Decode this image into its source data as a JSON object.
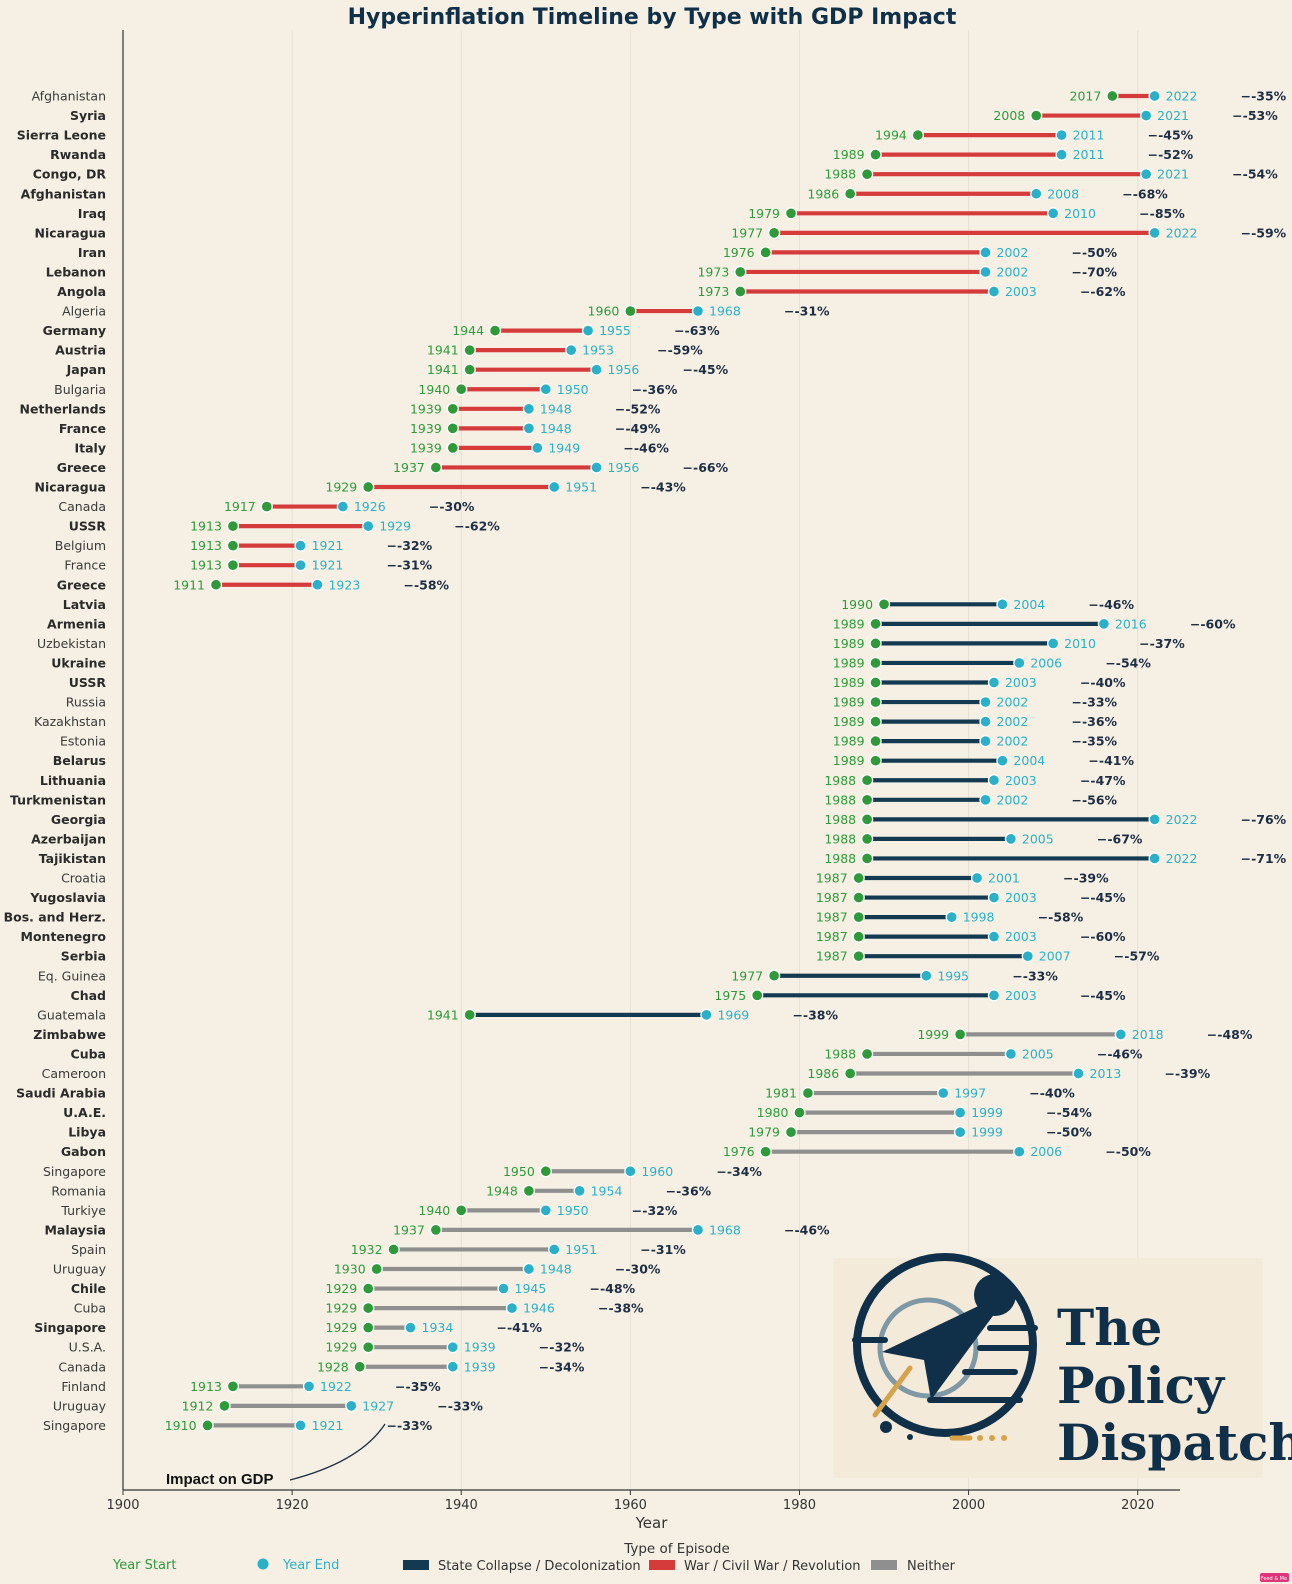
{
  "chart_data": {
    "type": "dumbbell",
    "title": "Hyperinflation Timeline by Type with GDP Impact",
    "xlabel": "Year",
    "xlim": [
      1900,
      2025
    ],
    "xticks": [
      1900,
      1920,
      1940,
      1960,
      1980,
      2000,
      2020
    ],
    "grid": "vertical",
    "rows": [
      {
        "country": "Afghanistan",
        "bold": false,
        "start": 2017,
        "end": 2022,
        "impact": "−-35%",
        "type": "war"
      },
      {
        "country": "Syria",
        "bold": true,
        "start": 2008,
        "end": 2021,
        "impact": "−-53%",
        "type": "war"
      },
      {
        "country": "Sierra Leone",
        "bold": true,
        "start": 1994,
        "end": 2011,
        "impact": "−-45%",
        "type": "war"
      },
      {
        "country": "Rwanda",
        "bold": true,
        "start": 1989,
        "end": 2011,
        "impact": "−-52%",
        "type": "war"
      },
      {
        "country": "Congo, DR",
        "bold": true,
        "start": 1988,
        "end": 2021,
        "impact": "−-54%",
        "type": "war"
      },
      {
        "country": "Afghanistan",
        "bold": true,
        "start": 1986,
        "end": 2008,
        "impact": "−-68%",
        "type": "war"
      },
      {
        "country": "Iraq",
        "bold": true,
        "start": 1979,
        "end": 2010,
        "impact": "−-85%",
        "type": "war"
      },
      {
        "country": "Nicaragua",
        "bold": true,
        "start": 1977,
        "end": 2022,
        "impact": "−-59%",
        "type": "war"
      },
      {
        "country": "Iran",
        "bold": true,
        "start": 1976,
        "end": 2002,
        "impact": "−-50%",
        "type": "war"
      },
      {
        "country": "Lebanon",
        "bold": true,
        "start": 1973,
        "end": 2002,
        "impact": "−-70%",
        "type": "war"
      },
      {
        "country": "Angola",
        "bold": true,
        "start": 1973,
        "end": 2003,
        "impact": "−-62%",
        "type": "war"
      },
      {
        "country": "Algeria",
        "bold": false,
        "start": 1960,
        "end": 1968,
        "impact": "−-31%",
        "type": "war"
      },
      {
        "country": "Germany",
        "bold": true,
        "start": 1944,
        "end": 1955,
        "impact": "−-63%",
        "type": "war"
      },
      {
        "country": "Austria",
        "bold": true,
        "start": 1941,
        "end": 1953,
        "impact": "−-59%",
        "type": "war"
      },
      {
        "country": "Japan",
        "bold": true,
        "start": 1941,
        "end": 1956,
        "impact": "−-45%",
        "type": "war"
      },
      {
        "country": "Bulgaria",
        "bold": false,
        "start": 1940,
        "end": 1950,
        "impact": "−-36%",
        "type": "war"
      },
      {
        "country": "Netherlands",
        "bold": true,
        "start": 1939,
        "end": 1948,
        "impact": "−-52%",
        "type": "war"
      },
      {
        "country": "France",
        "bold": true,
        "start": 1939,
        "end": 1948,
        "impact": "−-49%",
        "type": "war"
      },
      {
        "country": "Italy",
        "bold": true,
        "start": 1939,
        "end": 1949,
        "impact": "−-46%",
        "type": "war"
      },
      {
        "country": "Greece",
        "bold": true,
        "start": 1937,
        "end": 1956,
        "impact": "−-66%",
        "type": "war"
      },
      {
        "country": "Nicaragua",
        "bold": true,
        "start": 1929,
        "end": 1951,
        "impact": "−-43%",
        "type": "war"
      },
      {
        "country": "Canada",
        "bold": false,
        "start": 1917,
        "end": 1926,
        "impact": "−-30%",
        "type": "war"
      },
      {
        "country": "USSR",
        "bold": true,
        "start": 1913,
        "end": 1929,
        "impact": "−-62%",
        "type": "war"
      },
      {
        "country": "Belgium",
        "bold": false,
        "start": 1913,
        "end": 1921,
        "impact": "−-32%",
        "type": "war"
      },
      {
        "country": "France",
        "bold": false,
        "start": 1913,
        "end": 1921,
        "impact": "−-31%",
        "type": "war"
      },
      {
        "country": "Greece",
        "bold": true,
        "start": 1911,
        "end": 1923,
        "impact": "−-58%",
        "type": "war"
      },
      {
        "country": "Latvia",
        "bold": true,
        "start": 1990,
        "end": 2004,
        "impact": "−-46%",
        "type": "state"
      },
      {
        "country": "Armenia",
        "bold": true,
        "start": 1989,
        "end": 2016,
        "impact": "−-60%",
        "type": "state"
      },
      {
        "country": "Uzbekistan",
        "bold": false,
        "start": 1989,
        "end": 2010,
        "impact": "−-37%",
        "type": "state"
      },
      {
        "country": "Ukraine",
        "bold": true,
        "start": 1989,
        "end": 2006,
        "impact": "−-54%",
        "type": "state"
      },
      {
        "country": "USSR",
        "bold": true,
        "start": 1989,
        "end": 2003,
        "impact": "−-40%",
        "type": "state"
      },
      {
        "country": "Russia",
        "bold": false,
        "start": 1989,
        "end": 2002,
        "impact": "−-33%",
        "type": "state"
      },
      {
        "country": "Kazakhstan",
        "bold": false,
        "start": 1989,
        "end": 2002,
        "impact": "−-36%",
        "type": "state"
      },
      {
        "country": "Estonia",
        "bold": false,
        "start": 1989,
        "end": 2002,
        "impact": "−-35%",
        "type": "state"
      },
      {
        "country": "Belarus",
        "bold": true,
        "start": 1989,
        "end": 2004,
        "impact": "−-41%",
        "type": "state"
      },
      {
        "country": "Lithuania",
        "bold": true,
        "start": 1988,
        "end": 2003,
        "impact": "−-47%",
        "type": "state"
      },
      {
        "country": "Turkmenistan",
        "bold": true,
        "start": 1988,
        "end": 2002,
        "impact": "−-56%",
        "type": "state"
      },
      {
        "country": "Georgia",
        "bold": true,
        "start": 1988,
        "end": 2022,
        "impact": "−-76%",
        "type": "state"
      },
      {
        "country": "Azerbaijan",
        "bold": true,
        "start": 1988,
        "end": 2005,
        "impact": "−-67%",
        "type": "state"
      },
      {
        "country": "Tajikistan",
        "bold": true,
        "start": 1988,
        "end": 2022,
        "impact": "−-71%",
        "type": "state"
      },
      {
        "country": "Croatia",
        "bold": false,
        "start": 1987,
        "end": 2001,
        "impact": "−-39%",
        "type": "state"
      },
      {
        "country": "Yugoslavia",
        "bold": true,
        "start": 1987,
        "end": 2003,
        "impact": "−-45%",
        "type": "state"
      },
      {
        "country": "Bos. and Herz.",
        "bold": true,
        "start": 1987,
        "end": 1998,
        "impact": "−-58%",
        "type": "state"
      },
      {
        "country": "Montenegro",
        "bold": true,
        "start": 1987,
        "end": 2003,
        "impact": "−-60%",
        "type": "state"
      },
      {
        "country": "Serbia",
        "bold": true,
        "start": 1987,
        "end": 2007,
        "impact": "−-57%",
        "type": "state"
      },
      {
        "country": "Eq. Guinea",
        "bold": false,
        "start": 1977,
        "end": 1995,
        "impact": "−-33%",
        "type": "state"
      },
      {
        "country": "Chad",
        "bold": true,
        "start": 1975,
        "end": 2003,
        "impact": "−-45%",
        "type": "state"
      },
      {
        "country": "Guatemala",
        "bold": false,
        "start": 1941,
        "end": 1969,
        "impact": "−-38%",
        "type": "state"
      },
      {
        "country": "Zimbabwe",
        "bold": true,
        "start": 1999,
        "end": 2018,
        "impact": "−-48%",
        "type": "neither"
      },
      {
        "country": "Cuba",
        "bold": true,
        "start": 1988,
        "end": 2005,
        "impact": "−-46%",
        "type": "neither"
      },
      {
        "country": "Cameroon",
        "bold": false,
        "start": 1986,
        "end": 2013,
        "impact": "−-39%",
        "type": "neither"
      },
      {
        "country": "Saudi Arabia",
        "bold": true,
        "start": 1981,
        "end": 1997,
        "impact": "−-40%",
        "type": "neither"
      },
      {
        "country": "U.A.E.",
        "bold": true,
        "start": 1980,
        "end": 1999,
        "impact": "−-54%",
        "type": "neither"
      },
      {
        "country": "Libya",
        "bold": true,
        "start": 1979,
        "end": 1999,
        "impact": "−-50%",
        "type": "neither"
      },
      {
        "country": "Gabon",
        "bold": true,
        "start": 1976,
        "end": 2006,
        "impact": "−-50%",
        "type": "neither"
      },
      {
        "country": "Singapore",
        "bold": false,
        "start": 1950,
        "end": 1960,
        "impact": "−-34%",
        "type": "neither"
      },
      {
        "country": "Romania",
        "bold": false,
        "start": 1948,
        "end": 1954,
        "impact": "−-36%",
        "type": "neither"
      },
      {
        "country": "Turkiye",
        "bold": false,
        "start": 1940,
        "end": 1950,
        "impact": "−-32%",
        "type": "neither"
      },
      {
        "country": "Malaysia",
        "bold": true,
        "start": 1937,
        "end": 1968,
        "impact": "−-46%",
        "type": "neither"
      },
      {
        "country": "Spain",
        "bold": false,
        "start": 1932,
        "end": 1951,
        "impact": "−-31%",
        "type": "neither"
      },
      {
        "country": "Uruguay",
        "bold": false,
        "start": 1930,
        "end": 1948,
        "impact": "−-30%",
        "type": "neither"
      },
      {
        "country": "Chile",
        "bold": true,
        "start": 1929,
        "end": 1945,
        "impact": "−-48%",
        "type": "neither"
      },
      {
        "country": "Cuba",
        "bold": false,
        "start": 1929,
        "end": 1946,
        "impact": "−-38%",
        "type": "neither"
      },
      {
        "country": "Singapore",
        "bold": true,
        "start": 1929,
        "end": 1934,
        "impact": "−-41%",
        "type": "neither"
      },
      {
        "country": "U.S.A.",
        "bold": false,
        "start": 1929,
        "end": 1939,
        "impact": "−-32%",
        "type": "neither"
      },
      {
        "country": "Canada",
        "bold": false,
        "start": 1928,
        "end": 1939,
        "impact": "−-34%",
        "type": "neither"
      },
      {
        "country": "Finland",
        "bold": false,
        "start": 1913,
        "end": 1922,
        "impact": "−-35%",
        "type": "neither"
      },
      {
        "country": "Uruguay",
        "bold": false,
        "start": 1912,
        "end": 1927,
        "impact": "−-33%",
        "type": "neither"
      },
      {
        "country": "Singapore",
        "bold": false,
        "start": 1910,
        "end": 1921,
        "impact": "−-33%",
        "type": "neither"
      }
    ],
    "annotation": "Impact on GDP",
    "legend": {
      "title": "Type of Episode",
      "year_start": "Year Start",
      "year_end": "Year End",
      "types": [
        {
          "key": "state",
          "label": "State Collapse / Decolonization",
          "color": "#143a52"
        },
        {
          "key": "war",
          "label": "War / Civil War / Revolution",
          "color": "#d63b3b"
        },
        {
          "key": "neither",
          "label": "Neither",
          "color": "#8f8f8f"
        }
      ],
      "placement": "bottom"
    },
    "colors": {
      "start": "#2e9a3a",
      "end": "#2ab0c8",
      "impact": "#1e2f45",
      "background": "#f6f0e4"
    }
  },
  "logo": {
    "line1": "The",
    "line2": "Policy",
    "line3": "Dispatch"
  },
  "badge": "Feed & Me"
}
